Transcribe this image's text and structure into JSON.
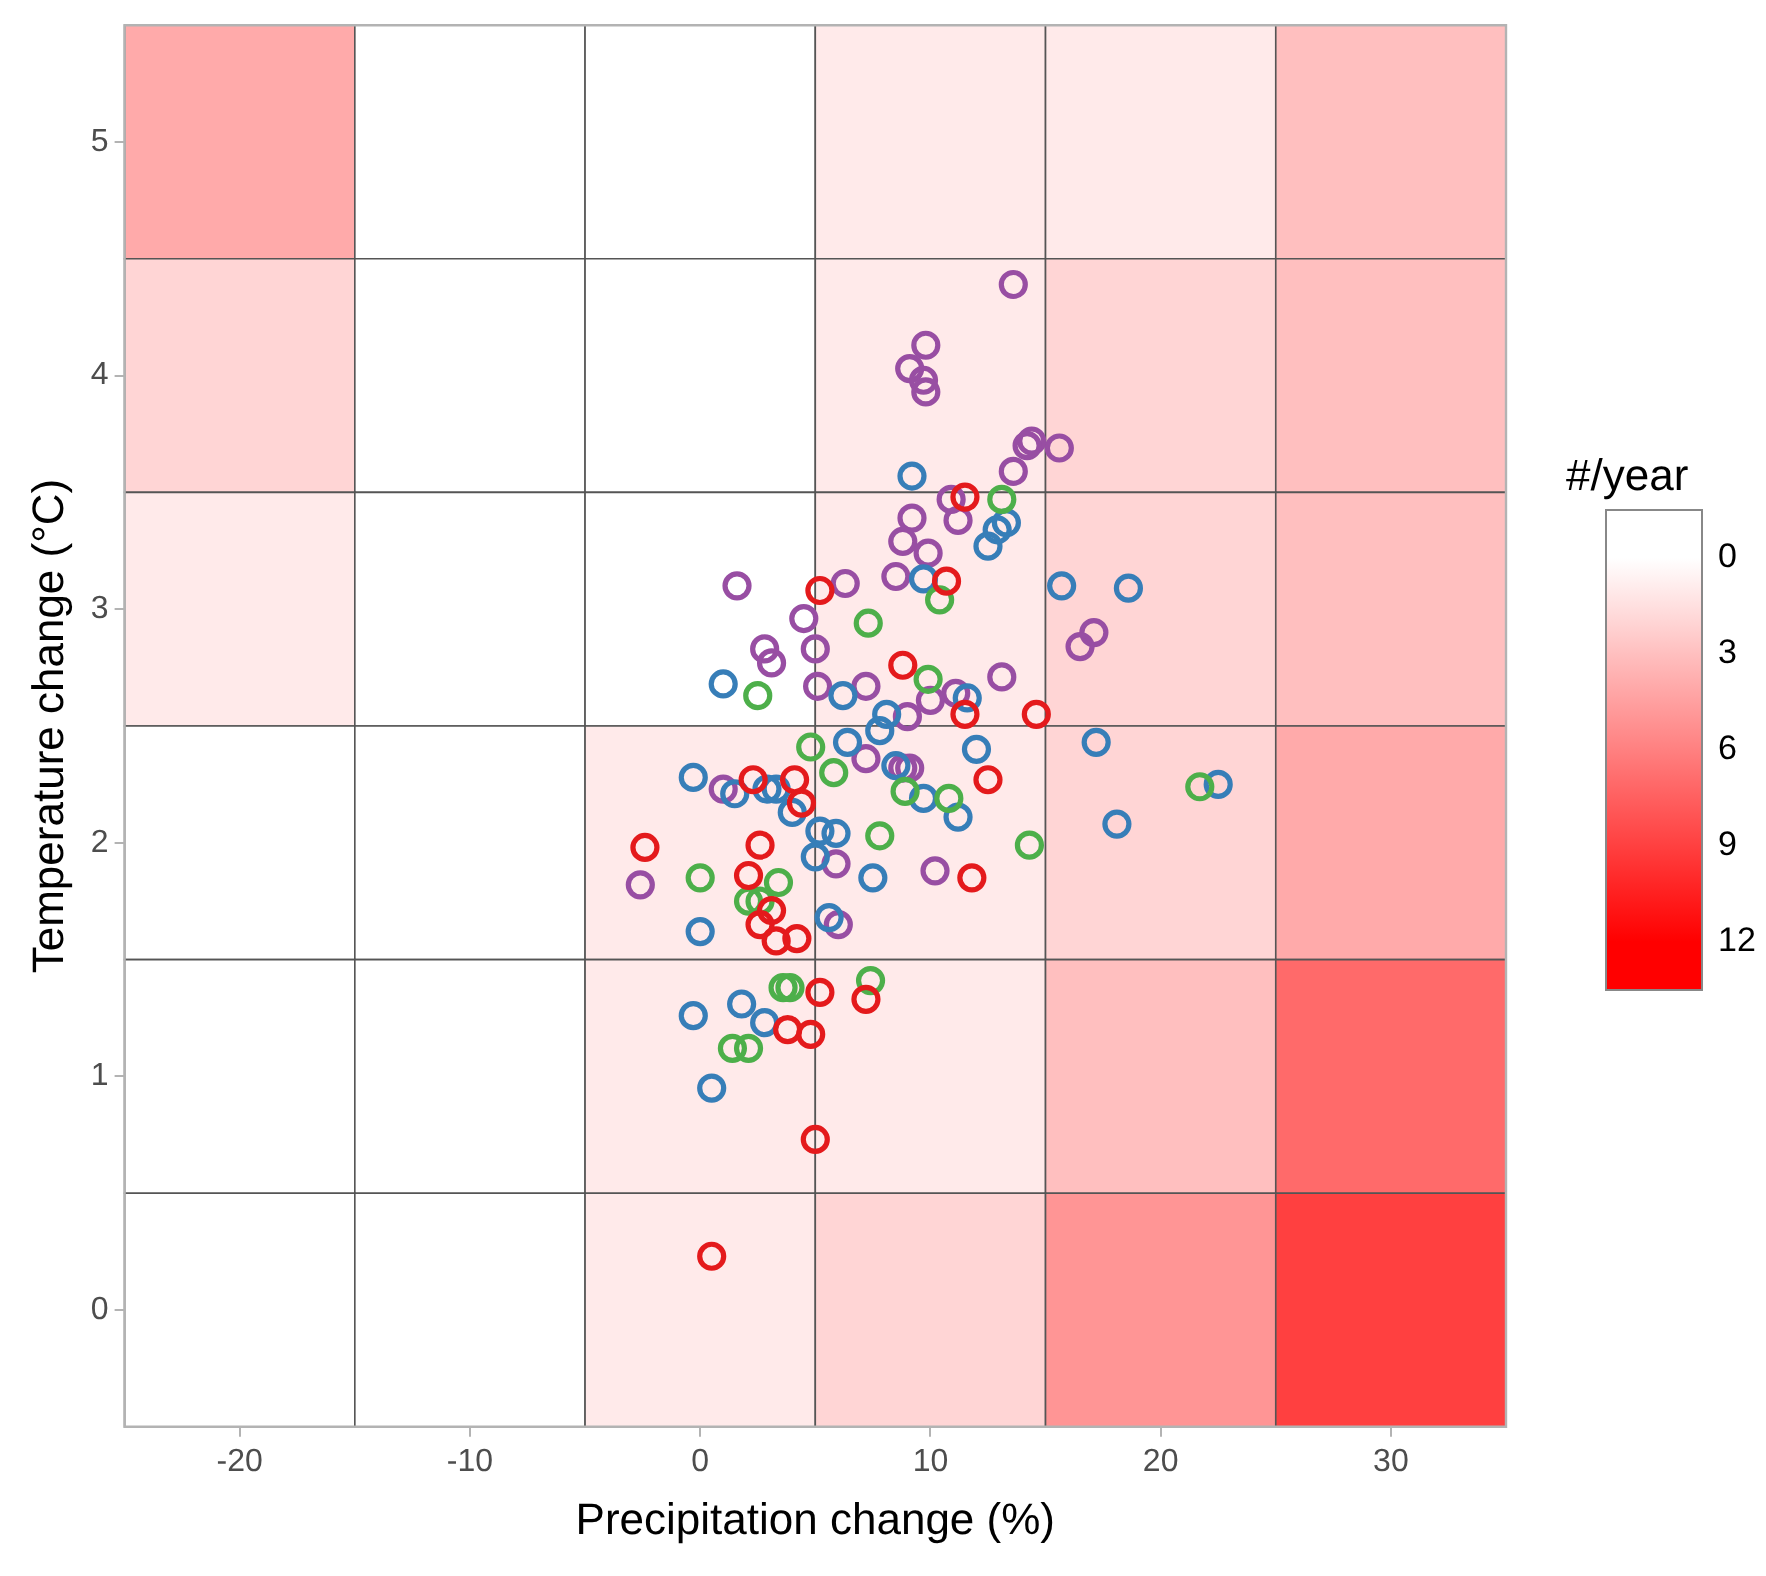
{
  "chart_data": [
    {
      "type": "heatmap",
      "tick_labels": false,
      "clabel": "#/year",
      "categories": [
        "-20",
        "-10",
        "0",
        "10",
        "20",
        "30"
      ],
      "y_categories": [
        "5",
        "4",
        "3",
        "2",
        "1",
        "0"
      ],
      "cells": [
        [
          4,
          0,
          0,
          1,
          1,
          3
        ],
        [
          2,
          0,
          0,
          1,
          2,
          3
        ],
        [
          1,
          0,
          0,
          1,
          2,
          3
        ],
        [
          0,
          0,
          1,
          1,
          2,
          4
        ],
        [
          0,
          0,
          1,
          1,
          3,
          7
        ],
        [
          0,
          0,
          1,
          2,
          5,
          9
        ]
      ],
      "clim": [
        0,
        12
      ],
      "cticks": [
        0,
        3,
        6,
        9,
        12
      ]
    },
    {
      "type": "scatter",
      "xlabel": "Precipitation change (%)",
      "ylabel": "Temperature change (°C)",
      "xlim": [
        -25,
        35
      ],
      "ylim": [
        -0.5,
        5.5
      ],
      "xticks": [
        -20,
        -10,
        0,
        10,
        20,
        30
      ],
      "yticks": [
        0,
        1,
        2,
        3,
        4,
        5
      ],
      "marker": "circle",
      "series": [
        {
          "type": "scatter",
          "color": "#e41a1c",
          "x": [
            0.5,
            5.0,
            5.2,
            7.2,
            3.8,
            4.8,
            3.3,
            4.2,
            2.6,
            3.1,
            2.1,
            2.6,
            -2.4,
            2.3,
            4.1,
            4.4,
            11.8,
            12.5,
            11.5,
            14.6,
            8.8,
            10.7,
            5.2,
            11.5
          ],
          "values": [
            0.23,
            0.73,
            1.36,
            1.33,
            1.2,
            1.18,
            1.58,
            1.59,
            1.65,
            1.71,
            1.86,
            1.99,
            1.98,
            2.27,
            2.27,
            2.17,
            1.85,
            2.27,
            2.55,
            2.55,
            2.76,
            3.12,
            3.08,
            3.48
          ]
        },
        {
          "type": "scatter",
          "color": "#4daf4a",
          "x": [
            13.1,
            10.4,
            7.3,
            2.5,
            9.9,
            4.8,
            5.8,
            8.9,
            10.8,
            14.3,
            21.7,
            7.8,
            0.0,
            3.4,
            2.1,
            2.6,
            3.6,
            3.9,
            7.4,
            1.4,
            2.1
          ],
          "values": [
            3.47,
            3.04,
            2.94,
            2.63,
            2.7,
            2.41,
            2.3,
            2.22,
            2.19,
            1.99,
            2.24,
            2.03,
            1.85,
            1.83,
            1.75,
            1.75,
            1.38,
            1.38,
            1.41,
            1.12,
            1.12
          ]
        },
        {
          "type": "scatter",
          "color": "#377eb8",
          "x": [
            9.2,
            13.3,
            12.9,
            12.5,
            15.7,
            18.6,
            9.7,
            1.0,
            6.2,
            11.6,
            8.1,
            7.8,
            6.4,
            12.0,
            17.2,
            8.5,
            -0.3,
            1.5,
            2.9,
            3.3,
            4.0,
            9.7,
            11.2,
            18.1,
            22.5,
            5.9,
            5.2,
            5.0,
            7.5,
            0.0,
            5.6,
            -0.3,
            1.8,
            2.8,
            0.5
          ],
          "values": [
            3.57,
            3.37,
            3.34,
            3.27,
            3.1,
            3.09,
            3.13,
            2.68,
            2.63,
            2.62,
            2.55,
            2.48,
            2.43,
            2.4,
            2.43,
            2.33,
            2.28,
            2.21,
            2.23,
            2.23,
            2.13,
            2.19,
            2.11,
            2.08,
            2.25,
            2.04,
            2.05,
            1.94,
            1.85,
            1.62,
            1.68,
            1.26,
            1.31,
            1.23,
            0.95
          ]
        },
        {
          "type": "scatter",
          "color": "#984ea3",
          "x": [
            13.6,
            9.8,
            9.1,
            9.7,
            9.8,
            14.4,
            14.2,
            15.6,
            13.6,
            10.9,
            11.2,
            9.2,
            8.8,
            9.9,
            8.5,
            6.3,
            1.6,
            4.5,
            2.8,
            3.1,
            5.0,
            17.1,
            16.5,
            13.1,
            7.2,
            5.1,
            11.1,
            10.0,
            9.0,
            7.2,
            8.8,
            9.1,
            1.0,
            -2.6,
            5.9,
            10.2,
            6.0
          ],
          "values": [
            4.39,
            4.13,
            4.03,
            3.98,
            3.93,
            3.72,
            3.7,
            3.69,
            3.59,
            3.47,
            3.38,
            3.39,
            3.29,
            3.24,
            3.14,
            3.11,
            3.1,
            2.96,
            2.83,
            2.77,
            2.83,
            2.9,
            2.84,
            2.71,
            2.67,
            2.67,
            2.64,
            2.61,
            2.54,
            2.36,
            2.32,
            2.32,
            2.23,
            1.82,
            1.91,
            1.88,
            1.65
          ]
        }
      ]
    }
  ]
}
